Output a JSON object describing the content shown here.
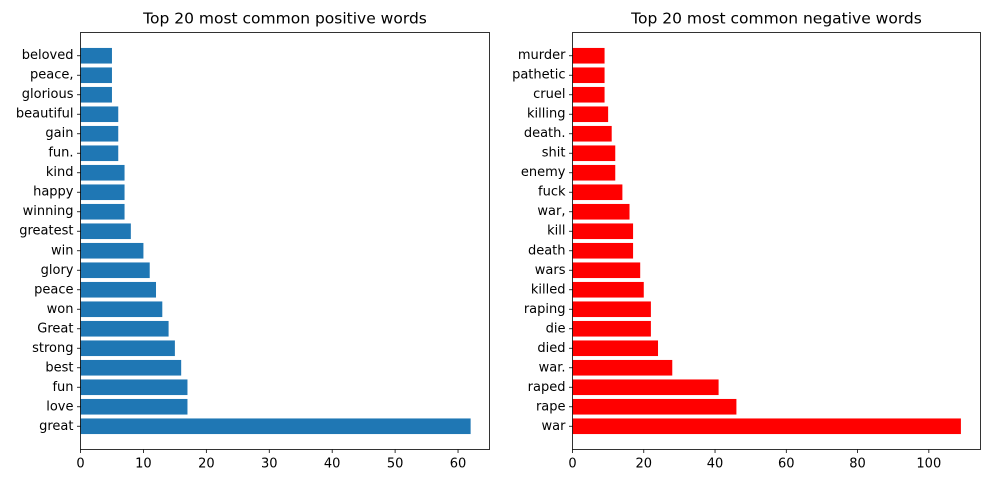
{
  "chart_data": [
    {
      "type": "bar",
      "orientation": "horizontal",
      "title": "Top 20 most common positive words",
      "xlabel": "",
      "ylabel": "",
      "color": "#1f77b4",
      "xlim": [
        0,
        65
      ],
      "xticks": [
        0,
        10,
        20,
        30,
        40,
        50,
        60
      ],
      "grid": false,
      "categories": [
        "great",
        "love",
        "fun",
        "best",
        "strong",
        "Great",
        "won",
        "peace",
        "glory",
        "win",
        "greatest",
        "winning",
        "happy",
        "kind",
        "fun.",
        "gain",
        "beautiful",
        "glorious",
        "peace,",
        "beloved"
      ],
      "values": [
        62,
        17,
        17,
        16,
        15,
        14,
        13,
        12,
        11,
        10,
        8,
        7,
        7,
        7,
        6,
        6,
        6,
        5,
        5,
        5
      ]
    },
    {
      "type": "bar",
      "orientation": "horizontal",
      "title": "Top 20 most common negative words",
      "xlabel": "",
      "ylabel": "",
      "color": "#ff0000",
      "xlim": [
        0,
        114.5
      ],
      "xticks": [
        0,
        20,
        40,
        60,
        80,
        100
      ],
      "grid": false,
      "categories": [
        "war",
        "rape",
        "raped",
        "war.",
        "died",
        "die",
        "raping",
        "killed",
        "wars",
        "death",
        "kill",
        "war,",
        "fuck",
        "enemy",
        "shit",
        "death.",
        "killing",
        "cruel",
        "pathetic",
        "murder"
      ],
      "values": [
        109,
        46,
        41,
        28,
        24,
        22,
        22,
        20,
        19,
        17,
        17,
        16,
        14,
        12,
        12,
        11,
        10,
        9,
        9,
        9
      ]
    }
  ]
}
